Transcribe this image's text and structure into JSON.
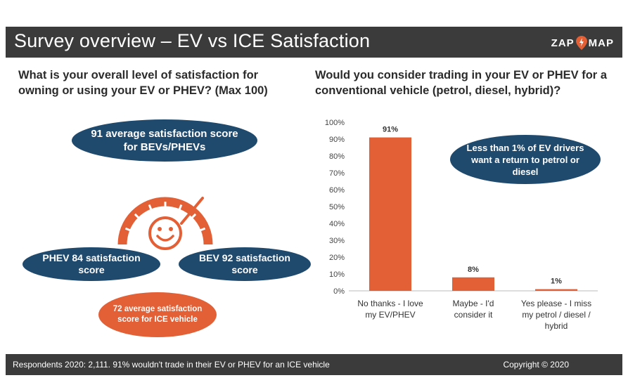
{
  "header": {
    "title": "Survey overview – EV vs ICE Satisfaction",
    "logo_left": "ZAP",
    "logo_right": "MAP"
  },
  "left_panel": {
    "question": "What is your overall level of satisfaction for owning or using your EV or PHEV? (Max 100)",
    "avg_label": "91 average satisfaction score for BEVs/PHEVs",
    "phev_label": "PHEV 84 satisfaction score",
    "bev_label": "BEV 92 satisfaction score",
    "ice_label": "72 average satisfaction score for ICE vehicle"
  },
  "right_panel": {
    "question": "Would you consider trading in your EV or PHEV for a conventional vehicle (petrol, diesel, hybrid)?",
    "note": "Less than 1% of EV drivers want a return to petrol or diesel"
  },
  "chart_data": {
    "type": "bar",
    "categories": [
      [
        "No thanks - I love",
        "my EV/PHEV"
      ],
      [
        "Maybe - I'd",
        "consider it"
      ],
      [
        "Yes please - I miss",
        "my petrol / diesel /",
        "hybrid"
      ]
    ],
    "values": [
      91,
      8,
      1
    ],
    "data_labels": [
      "91%",
      "8%",
      "1%"
    ],
    "yticks": [
      "0%",
      "10%",
      "20%",
      "30%",
      "40%",
      "50%",
      "60%",
      "70%",
      "80%",
      "90%",
      "100%"
    ],
    "ylim": [
      0,
      100
    ],
    "bar_color": "#e35f36",
    "title": "Would you consider trading in your EV or PHEV for a conventional vehicle (petrol, diesel, hybrid)?",
    "xlabel": "",
    "ylabel": ""
  },
  "footer": {
    "note": "Respondents 2020: 2,111. 91% wouldn't trade in their EV or PHEV for an ICE vehicle",
    "copyright": "Copyright © 2020"
  },
  "colors": {
    "dark": "#3b3b3b",
    "navy": "#1f4a6e",
    "orange": "#e35f36"
  }
}
